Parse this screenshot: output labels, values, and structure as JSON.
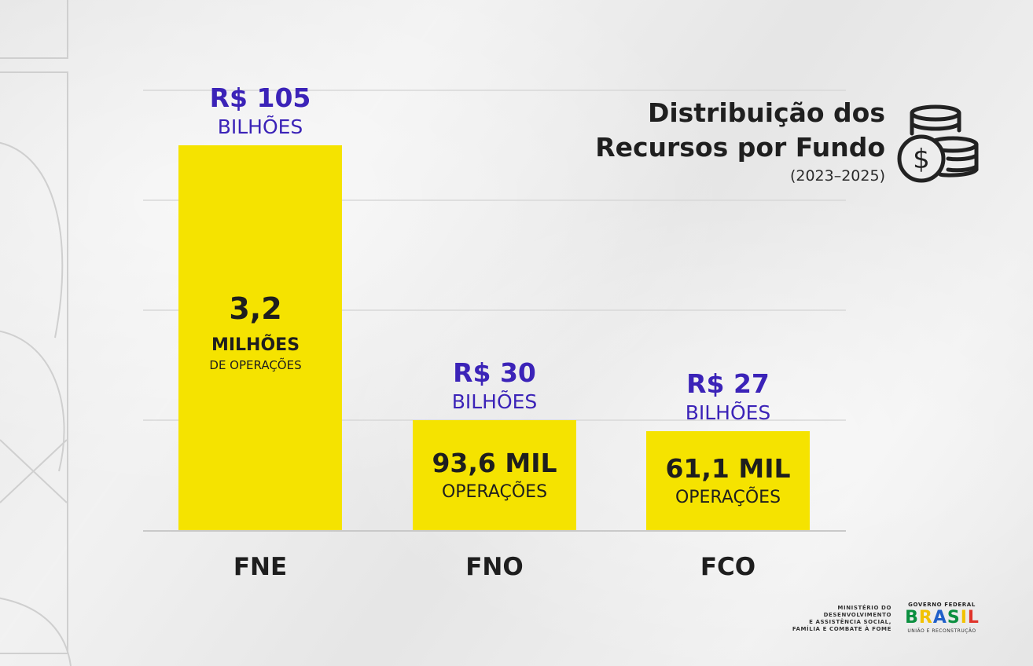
{
  "title": {
    "line1": "Distribuição dos",
    "line2": "Recursos por Fundo",
    "period": "(2023–2025)"
  },
  "colors": {
    "bar": "#f5e300",
    "value_text": "#3b23b8",
    "dark_text": "#1e1e1e",
    "grid": "#d8d8d8"
  },
  "chart_data": {
    "type": "bar",
    "title": "Distribuição dos Recursos por Fundo",
    "subtitle": "(2023–2025)",
    "xlabel": "",
    "ylabel": "",
    "ylim": [
      0,
      105
    ],
    "categories": [
      "FNE",
      "FNO",
      "FCO"
    ],
    "values": [
      105,
      30,
      27
    ],
    "value_unit": "R$ bilhões",
    "grid": true,
    "value_labels": [
      {
        "amount": "R$ 105",
        "unit": "BILHÕES"
      },
      {
        "amount": "R$ 30",
        "unit": "BILHÕES"
      },
      {
        "amount": "R$ 27",
        "unit": "BILHÕES"
      }
    ],
    "inner_labels": [
      {
        "lines": [
          "3,2",
          "MILHÕES",
          "DE OPERAÇÕES"
        ]
      },
      {
        "lines": [
          "93,6 MIL",
          "OPERAÇÕES"
        ]
      },
      {
        "lines": [
          "61,1 MIL",
          "OPERAÇÕES"
        ]
      }
    ]
  },
  "icons": {
    "coins": "coins-dollar-icon"
  },
  "footer": {
    "ministry": [
      "MINISTÉRIO DO",
      "DESENVOLVIMENTO",
      "E ASSISTÊNCIA SOCIAL,",
      "FAMÍLIA E COMBATE À FOME"
    ],
    "gov_top": "GOVERNO FEDERAL",
    "gov_word": "BRASIL",
    "gov_word_colors": [
      "#0b8f3f",
      "#f2c200",
      "#1f5fc9",
      "#0b8f3f",
      "#f2c200",
      "#e0332a"
    ],
    "gov_bottom": "UNIÃO E RECONSTRUÇÃO"
  }
}
